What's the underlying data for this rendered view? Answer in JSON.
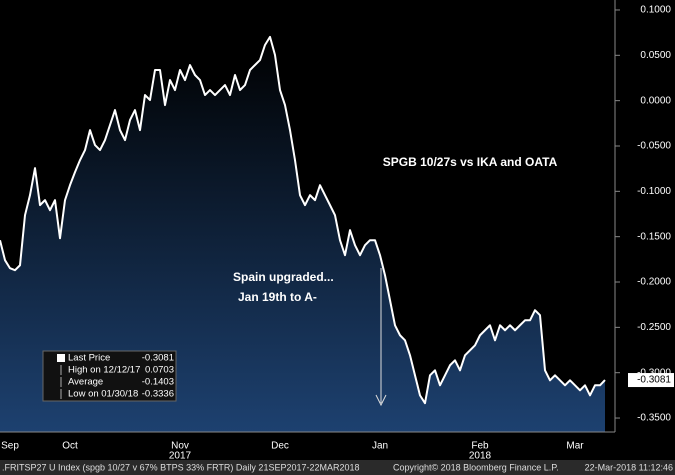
{
  "chart_data": {
    "type": "area",
    "annotations": [
      "SPGB 10/27s vs IKA and OATA",
      "Spain upgraded...",
      "Jan 19th to A-"
    ],
    "categories": [
      null,
      null,
      "Sep",
      null,
      null,
      null,
      null,
      null,
      null,
      null,
      null,
      null,
      null,
      null,
      "Oct",
      null,
      null,
      null,
      null,
      null,
      null,
      null,
      null,
      null,
      null,
      null,
      null,
      null,
      null,
      null,
      null,
      null,
      null,
      null,
      null,
      null,
      "Nov",
      null,
      null,
      null,
      null,
      null,
      null,
      null,
      null,
      null,
      null,
      null,
      null,
      null,
      null,
      null,
      null,
      null,
      null,
      null,
      "Dec",
      null,
      null,
      null,
      null,
      null,
      null,
      null,
      null,
      null,
      null,
      null,
      null,
      null,
      null,
      null,
      null,
      null,
      null,
      null,
      "Jan",
      null,
      null,
      null,
      null,
      null,
      null,
      null,
      null,
      null,
      null,
      null,
      null,
      null,
      null,
      null,
      null,
      null,
      null,
      null,
      "Feb",
      null,
      null,
      null,
      null,
      null,
      null,
      null,
      null,
      null,
      null,
      null,
      null,
      null,
      null,
      null,
      null,
      null,
      null,
      "Mar",
      null,
      null,
      null,
      null,
      null,
      null
    ],
    "years": [
      null,
      null,
      null,
      null,
      null,
      null,
      null,
      null,
      null,
      null,
      null,
      null,
      null,
      null,
      null,
      null,
      null,
      null,
      null,
      null,
      null,
      null,
      null,
      null,
      null,
      null,
      null,
      null,
      null,
      null,
      null,
      null,
      null,
      null,
      null,
      null,
      "2017",
      null,
      null,
      null,
      null,
      null,
      null,
      null,
      null,
      null,
      null,
      null,
      null,
      null,
      null,
      null,
      null,
      null,
      null,
      null,
      null,
      null,
      null,
      null,
      null,
      null,
      null,
      null,
      null,
      null,
      null,
      null,
      null,
      null,
      null,
      null,
      null,
      null,
      null,
      null,
      null,
      null,
      null,
      null,
      null,
      null,
      null,
      null,
      null,
      null,
      null,
      null,
      null,
      null,
      null,
      null,
      null,
      null,
      null,
      null,
      "2018",
      null,
      null,
      null,
      null,
      null,
      null,
      null,
      null,
      null,
      null,
      null,
      null,
      null,
      null,
      null,
      null,
      null,
      null,
      null,
      null,
      null,
      null,
      null,
      null,
      null
    ],
    "series": [
      {
        "name": "Last Price",
        "color": "#ffffff",
        "values": [
          -0.1539,
          -0.1759,
          -0.1848,
          -0.187,
          -0.1815,
          -0.1263,
          -0.1042,
          -0.0744,
          -0.1152,
          -0.1097,
          -0.1208,
          -0.1097,
          -0.1517,
          -0.1097,
          -0.0932,
          -0.0788,
          -0.0656,
          -0.0545,
          -0.0325,
          -0.049,
          -0.0545,
          -0.0435,
          -0.0269,
          -0.0104,
          -0.0325,
          -0.0435,
          -0.0214,
          -0.0104,
          -0.0325,
          0.0062,
          0.0007,
          0.0338,
          0.0338,
          -0.0049,
          0.0227,
          0.0117,
          0.0338,
          0.0227,
          0.0393,
          0.0283,
          0.0227,
          0.0062,
          0.0117,
          0.0062,
          0.0117,
          0.0172,
          0.0062,
          0.0283,
          0.0117,
          0.0172,
          0.0338,
          0.0393,
          0.0448,
          0.0614,
          0.0703,
          0.0503,
          0.0117,
          -0.0049,
          -0.0325,
          -0.0656,
          -0.1042,
          -0.1152,
          -0.1042,
          -0.1097,
          -0.0932,
          -0.1042,
          -0.1152,
          -0.1263,
          -0.1539,
          -0.1704,
          -0.1428,
          -0.1594,
          -0.1704,
          -0.1594,
          -0.1539,
          -0.1539,
          -0.1704,
          -0.1925,
          -0.2201,
          -0.2477,
          -0.2587,
          -0.2643,
          -0.2808,
          -0.3029,
          -0.325,
          -0.3336,
          -0.3029,
          -0.2974,
          -0.3139,
          -0.3029,
          -0.2918,
          -0.2863,
          -0.2974,
          -0.2808,
          -0.2753,
          -0.2698,
          -0.2587,
          -0.2532,
          -0.2477,
          -0.2643,
          -0.2477,
          -0.2532,
          -0.2477,
          -0.2532,
          -0.2477,
          -0.2422,
          -0.2422,
          -0.2311,
          -0.2366,
          -0.2974,
          -0.3084,
          -0.3029,
          -0.3084,
          -0.3139,
          -0.3084,
          -0.3139,
          -0.3194,
          -0.3139,
          -0.325,
          -0.3139,
          -0.3139,
          -0.3081
        ]
      }
    ],
    "ylim": [
      -0.3654,
      0.111
    ],
    "yticks": [
      {
        "value": 0.1,
        "label": "0.1000"
      },
      {
        "value": 0.05,
        "label": "0.0500"
      },
      {
        "value": 0,
        "label": "0.0000"
      },
      {
        "value": -0.05,
        "label": "-0.0500"
      },
      {
        "value": -0.1,
        "label": "-0.1000"
      },
      {
        "value": -0.15,
        "label": "-0.1500"
      },
      {
        "value": -0.2,
        "label": "-0.2000"
      },
      {
        "value": -0.25,
        "label": "-0.2500"
      },
      {
        "value": -0.3,
        "label": "-0.3000"
      },
      {
        "value": -0.35,
        "label": "-0.3500"
      }
    ],
    "legend": [
      {
        "label": "Last Price",
        "value": -0.3081
      },
      {
        "label": "High on 12/12/17",
        "value": 0.0703
      },
      {
        "label": "Average",
        "value": -0.1403
      },
      {
        "label": "Low on 01/30/18",
        "value": -0.3336
      }
    ],
    "footer": [
      ".FRITSP27 U Index (spgb 10/27 v 67% BTPS 33% FRTR)  Daily 21SEP2017-22MAR2018",
      "Copyright© 2018 Bloomberg Finance L.P.",
      "22-Mar-2018 11:12:46"
    ]
  }
}
